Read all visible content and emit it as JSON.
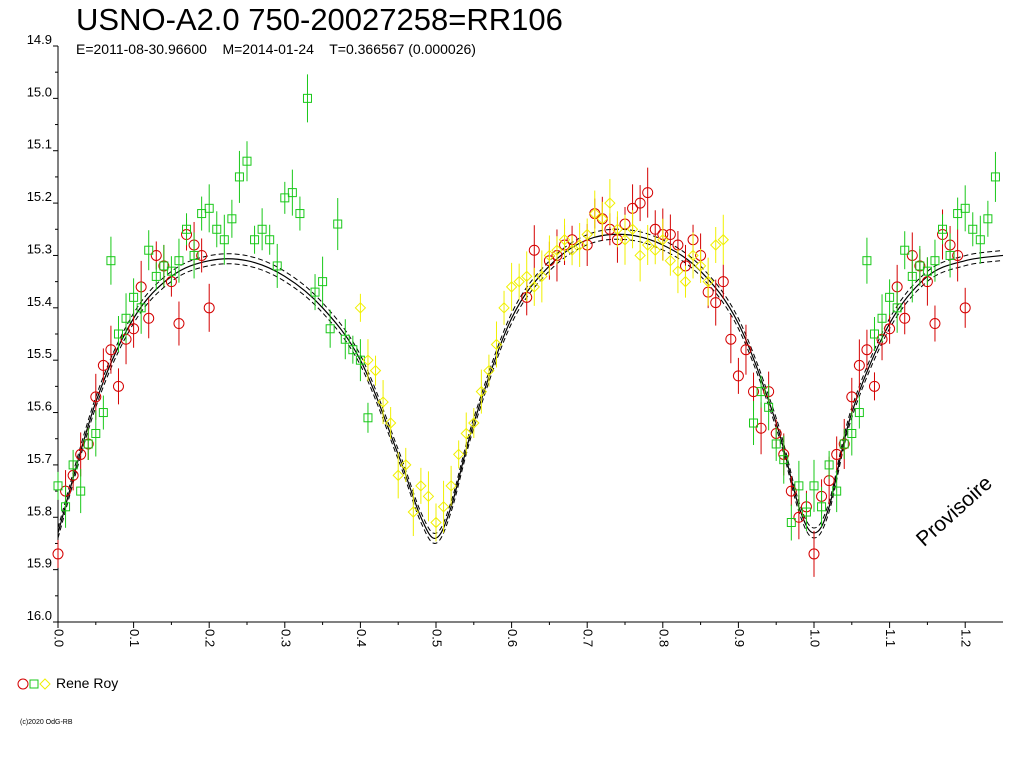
{
  "header": {
    "title": "USNO-A2.0 750-20027258=RR106",
    "subtitle": "E=2011-08-30.96600    M=2014-01-24    T=0.366567 (0.000026)"
  },
  "legend": {
    "label": "Rene Roy"
  },
  "footer": {
    "copyright": "(c)2020 OdG-RB"
  },
  "watermark": {
    "text": "Provisoire"
  },
  "colors": {
    "red": "#d40000",
    "green": "#19c819",
    "yellow": "#f0f000",
    "curve": "#000000"
  },
  "chart_data": {
    "type": "scatter",
    "title": "USNO-A2.0 750-20027258=RR106",
    "subtitle": "E=2011-08-30.96600    M=2014-01-24    T=0.366567 (0.000026)",
    "xlabel": "",
    "ylabel": "",
    "xlim": [
      0.0,
      1.25
    ],
    "ylim": [
      14.9,
      16.0
    ],
    "y_inverted": true,
    "xticks": [
      "0.0",
      "0.1",
      "0.2",
      "0.3",
      "0.4",
      "0.5",
      "0.6",
      "0.7",
      "0.8",
      "0.9",
      "1.0",
      "1.1",
      "1.2"
    ],
    "yticks": [
      "14.9",
      "15.0",
      "15.1",
      "15.2",
      "15.3",
      "15.4",
      "15.5",
      "15.6",
      "15.7",
      "15.8",
      "15.9",
      "16.0"
    ],
    "grid": false,
    "legend_position": "bottom-left",
    "model_curve": {
      "phase": [
        0.0,
        0.05,
        0.1,
        0.15,
        0.2,
        0.25,
        0.3,
        0.35,
        0.4,
        0.45,
        0.48,
        0.5,
        0.52,
        0.55,
        0.6,
        0.65,
        0.7,
        0.75,
        0.8,
        0.85,
        0.9,
        0.95,
        0.98,
        1.0,
        1.02,
        1.05,
        1.1,
        1.15,
        1.2,
        1.25
      ],
      "mag": [
        15.83,
        15.58,
        15.42,
        15.34,
        15.31,
        15.31,
        15.34,
        15.4,
        15.5,
        15.68,
        15.8,
        15.84,
        15.78,
        15.62,
        15.42,
        15.32,
        15.27,
        15.26,
        15.28,
        15.33,
        15.43,
        15.62,
        15.78,
        15.83,
        15.78,
        15.6,
        15.43,
        15.34,
        15.31,
        15.3
      ]
    },
    "series": [
      {
        "name": "Rene Roy",
        "marker": "circle",
        "color": "#d40000",
        "x": [
          0.0,
          0.01,
          0.02,
          0.03,
          0.04,
          0.05,
          0.06,
          0.07,
          0.08,
          0.09,
          0.1,
          0.11,
          0.12,
          0.13,
          0.14,
          0.15,
          0.16,
          0.17,
          0.18,
          0.19,
          0.2,
          0.62,
          0.63,
          0.65,
          0.66,
          0.67,
          0.68,
          0.7,
          0.71,
          0.72,
          0.73,
          0.74,
          0.75,
          0.76,
          0.77,
          0.78,
          0.79,
          0.8,
          0.81,
          0.82,
          0.83,
          0.84,
          0.85,
          0.86,
          0.87,
          0.88,
          0.89,
          0.9,
          0.91,
          0.92,
          0.93,
          0.94,
          0.95,
          0.96,
          0.97,
          0.98,
          0.99,
          1.0,
          1.01,
          1.02,
          1.03,
          1.04,
          1.05,
          1.06,
          1.07,
          1.08,
          1.09,
          1.1,
          1.11,
          1.12,
          1.13,
          1.14,
          1.15,
          1.16,
          1.17,
          1.18,
          1.19,
          1.2
        ],
        "y": [
          15.87,
          15.75,
          15.72,
          15.68,
          15.66,
          15.57,
          15.51,
          15.48,
          15.55,
          15.46,
          15.44,
          15.36,
          15.42,
          15.3,
          15.32,
          15.35,
          15.43,
          15.26,
          15.28,
          15.3,
          15.4,
          15.38,
          15.29,
          15.31,
          15.3,
          15.28,
          15.27,
          15.28,
          15.22,
          15.23,
          15.25,
          15.27,
          15.24,
          15.21,
          15.2,
          15.18,
          15.25,
          15.26,
          15.26,
          15.28,
          15.32,
          15.27,
          15.3,
          15.37,
          15.39,
          15.35,
          15.46,
          15.53,
          15.48,
          15.56,
          15.63,
          15.56,
          15.64,
          15.68,
          15.75,
          15.8,
          15.78,
          15.87,
          15.76,
          15.73,
          15.68,
          15.66,
          15.57,
          15.51,
          15.48,
          15.55,
          15.46,
          15.44,
          15.36,
          15.42,
          15.3,
          15.32,
          15.35,
          15.43,
          15.26,
          15.28,
          15.3,
          15.4
        ]
      },
      {
        "name": "Rene Roy",
        "marker": "square",
        "color": "#19c819",
        "x": [
          0.0,
          0.01,
          0.02,
          0.03,
          0.04,
          0.05,
          0.06,
          0.07,
          0.08,
          0.09,
          0.1,
          0.11,
          0.12,
          0.13,
          0.14,
          0.15,
          0.16,
          0.17,
          0.18,
          0.19,
          0.2,
          0.21,
          0.22,
          0.23,
          0.24,
          0.25,
          0.26,
          0.27,
          0.28,
          0.29,
          0.3,
          0.31,
          0.32,
          0.33,
          0.34,
          0.35,
          0.36,
          0.37,
          0.38,
          0.39,
          0.4,
          0.41,
          0.92,
          0.93,
          0.94,
          0.95,
          0.96,
          0.97,
          0.98,
          0.99,
          1.0,
          1.01,
          1.02,
          1.03,
          1.04,
          1.05,
          1.06,
          1.07,
          1.08,
          1.09,
          1.1,
          1.11,
          1.12,
          1.13,
          1.14,
          1.15,
          1.16,
          1.17,
          1.18,
          1.19,
          1.2,
          1.21,
          1.22,
          1.23,
          1.24
        ],
        "y": [
          15.74,
          15.78,
          15.7,
          15.75,
          15.66,
          15.64,
          15.6,
          15.31,
          15.45,
          15.42,
          15.38,
          15.4,
          15.29,
          15.34,
          15.32,
          15.33,
          15.31,
          15.25,
          15.3,
          15.22,
          15.21,
          15.25,
          15.27,
          15.23,
          15.15,
          15.12,
          15.27,
          15.25,
          15.27,
          15.32,
          15.19,
          15.18,
          15.22,
          15.0,
          15.37,
          15.35,
          15.44,
          15.24,
          15.46,
          15.48,
          15.5,
          15.61,
          15.62,
          15.56,
          15.59,
          15.66,
          15.69,
          15.81,
          15.74,
          15.79,
          15.74,
          15.78,
          15.7,
          15.75,
          15.66,
          15.64,
          15.6,
          15.31,
          15.45,
          15.42,
          15.38,
          15.4,
          15.29,
          15.34,
          15.32,
          15.33,
          15.31,
          15.25,
          15.3,
          15.22,
          15.21,
          15.25,
          15.27,
          15.23,
          15.15
        ]
      },
      {
        "name": "Rene Roy",
        "marker": "diamond",
        "color": "#f0f000",
        "x": [
          0.4,
          0.41,
          0.42,
          0.43,
          0.44,
          0.45,
          0.46,
          0.47,
          0.48,
          0.49,
          0.5,
          0.51,
          0.52,
          0.53,
          0.54,
          0.55,
          0.56,
          0.57,
          0.58,
          0.59,
          0.6,
          0.61,
          0.62,
          0.63,
          0.64,
          0.65,
          0.66,
          0.67,
          0.68,
          0.69,
          0.7,
          0.71,
          0.72,
          0.73,
          0.74,
          0.75,
          0.76,
          0.77,
          0.78,
          0.79,
          0.8,
          0.81,
          0.82,
          0.83,
          0.84,
          0.85,
          0.86,
          0.87,
          0.88
        ],
        "y": [
          15.4,
          15.5,
          15.52,
          15.58,
          15.62,
          15.72,
          15.7,
          15.79,
          15.74,
          15.76,
          15.81,
          15.78,
          15.74,
          15.68,
          15.64,
          15.62,
          15.56,
          15.52,
          15.47,
          15.4,
          15.36,
          15.35,
          15.34,
          15.36,
          15.34,
          15.3,
          15.29,
          15.27,
          15.29,
          15.28,
          15.26,
          15.22,
          15.23,
          15.2,
          15.25,
          15.27,
          15.25,
          15.3,
          15.28,
          15.29,
          15.27,
          15.31,
          15.33,
          15.35,
          15.3,
          15.32,
          15.35,
          15.28,
          15.27
        ]
      }
    ]
  }
}
